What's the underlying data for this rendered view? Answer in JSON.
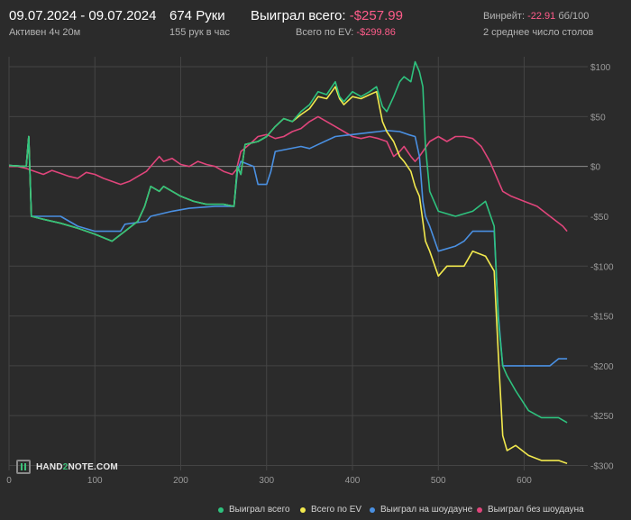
{
  "header": {
    "date_range": "09.07.2024 - 09.07.2024",
    "active_time": "Активен 4ч 20м",
    "hands": "674 Руки",
    "hands_per_hour": "155 рук в час",
    "won_total_label": "Выиграл всего:",
    "won_total_value": "-$257.99",
    "ev_total_label": "Всего по EV:",
    "ev_total_value": "-$299.86",
    "winrate_label": "Винрейт:",
    "winrate_value": "-22.91",
    "winrate_unit": "бб/100",
    "tables_text": "2 среднее число столов"
  },
  "logo": {
    "text_left": "HAND",
    "text_accent": "2",
    "text_right": "NOTE.COM"
  },
  "colors": {
    "background": "#2b2b2b",
    "grid": "#444444",
    "zero_line": "#8c8c8c",
    "axis_text": "#9a9a9a",
    "negative": "#ff5c8a",
    "won_total": "#2ec27e",
    "ev_total": "#f2e94e",
    "showdown": "#4a90e2",
    "non_showdown": "#e0457b"
  },
  "chart_data": {
    "type": "line",
    "title": "",
    "xlabel": "",
    "ylabel": "",
    "xlim": [
      0,
      674
    ],
    "ylim": [
      -305,
      110
    ],
    "x_ticks": [
      0,
      100,
      200,
      300,
      400,
      500,
      600
    ],
    "y_ticks": [
      100,
      50,
      0,
      -50,
      -100,
      -150,
      -200,
      -250,
      -300
    ],
    "y_tick_labels": [
      "$100",
      "$50",
      "$0",
      "-$50",
      "-$100",
      "-$150",
      "-$200",
      "-$250",
      "-$300"
    ],
    "grid": true,
    "legend_position": "bottom-right",
    "series": [
      {
        "name": "Выиграл всего",
        "color": "#2ec27e",
        "points": [
          [
            0,
            1
          ],
          [
            20,
            0
          ],
          [
            23,
            30
          ],
          [
            26,
            -50
          ],
          [
            40,
            -53
          ],
          [
            60,
            -57
          ],
          [
            80,
            -62
          ],
          [
            100,
            -68
          ],
          [
            120,
            -75
          ],
          [
            135,
            -65
          ],
          [
            150,
            -55
          ],
          [
            158,
            -40
          ],
          [
            165,
            -20
          ],
          [
            175,
            -25
          ],
          [
            180,
            -20
          ],
          [
            200,
            -30
          ],
          [
            215,
            -35
          ],
          [
            230,
            -38
          ],
          [
            250,
            -38
          ],
          [
            262,
            -40
          ],
          [
            266,
            0
          ],
          [
            270,
            -8
          ],
          [
            275,
            22
          ],
          [
            290,
            25
          ],
          [
            300,
            30
          ],
          [
            310,
            40
          ],
          [
            320,
            48
          ],
          [
            330,
            45
          ],
          [
            340,
            55
          ],
          [
            350,
            62
          ],
          [
            360,
            75
          ],
          [
            370,
            72
          ],
          [
            380,
            85
          ],
          [
            385,
            70
          ],
          [
            390,
            65
          ],
          [
            400,
            75
          ],
          [
            410,
            70
          ],
          [
            420,
            75
          ],
          [
            428,
            80
          ],
          [
            435,
            60
          ],
          [
            440,
            55
          ],
          [
            448,
            70
          ],
          [
            455,
            85
          ],
          [
            460,
            90
          ],
          [
            468,
            85
          ],
          [
            473,
            105
          ],
          [
            478,
            95
          ],
          [
            482,
            80
          ],
          [
            485,
            20
          ],
          [
            490,
            -25
          ],
          [
            500,
            -45
          ],
          [
            520,
            -50
          ],
          [
            540,
            -45
          ],
          [
            555,
            -35
          ],
          [
            565,
            -60
          ],
          [
            570,
            -155
          ],
          [
            575,
            -200
          ],
          [
            580,
            -210
          ],
          [
            590,
            -225
          ],
          [
            605,
            -245
          ],
          [
            620,
            -252
          ],
          [
            640,
            -252
          ],
          [
            650,
            -257
          ]
        ]
      },
      {
        "name": "Всего по EV",
        "color": "#f2e94e",
        "points": [
          [
            0,
            1
          ],
          [
            20,
            0
          ],
          [
            23,
            30
          ],
          [
            26,
            -50
          ],
          [
            40,
            -53
          ],
          [
            60,
            -57
          ],
          [
            80,
            -62
          ],
          [
            100,
            -68
          ],
          [
            120,
            -75
          ],
          [
            135,
            -65
          ],
          [
            150,
            -55
          ],
          [
            158,
            -40
          ],
          [
            165,
            -20
          ],
          [
            175,
            -25
          ],
          [
            180,
            -20
          ],
          [
            200,
            -30
          ],
          [
            215,
            -35
          ],
          [
            230,
            -38
          ],
          [
            250,
            -38
          ],
          [
            262,
            -40
          ],
          [
            266,
            0
          ],
          [
            270,
            -8
          ],
          [
            275,
            22
          ],
          [
            290,
            25
          ],
          [
            300,
            30
          ],
          [
            310,
            40
          ],
          [
            320,
            48
          ],
          [
            330,
            45
          ],
          [
            340,
            52
          ],
          [
            350,
            58
          ],
          [
            360,
            70
          ],
          [
            370,
            68
          ],
          [
            380,
            80
          ],
          [
            385,
            68
          ],
          [
            390,
            62
          ],
          [
            400,
            70
          ],
          [
            410,
            68
          ],
          [
            420,
            72
          ],
          [
            428,
            75
          ],
          [
            435,
            45
          ],
          [
            440,
            35
          ],
          [
            448,
            25
          ],
          [
            455,
            10
          ],
          [
            460,
            5
          ],
          [
            468,
            -5
          ],
          [
            473,
            -20
          ],
          [
            478,
            -30
          ],
          [
            482,
            -55
          ],
          [
            485,
            -75
          ],
          [
            490,
            -85
          ],
          [
            500,
            -110
          ],
          [
            510,
            -100
          ],
          [
            530,
            -100
          ],
          [
            540,
            -85
          ],
          [
            555,
            -90
          ],
          [
            565,
            -105
          ],
          [
            570,
            -190
          ],
          [
            575,
            -270
          ],
          [
            580,
            -285
          ],
          [
            590,
            -280
          ],
          [
            605,
            -290
          ],
          [
            620,
            -295
          ],
          [
            640,
            -295
          ],
          [
            650,
            -298
          ]
        ]
      },
      {
        "name": "Выиграл на шоудауне",
        "color": "#4a90e2",
        "points": [
          [
            0,
            1
          ],
          [
            20,
            0
          ],
          [
            23,
            30
          ],
          [
            26,
            -50
          ],
          [
            60,
            -50
          ],
          [
            80,
            -60
          ],
          [
            100,
            -65
          ],
          [
            130,
            -65
          ],
          [
            135,
            -58
          ],
          [
            160,
            -55
          ],
          [
            165,
            -50
          ],
          [
            190,
            -45
          ],
          [
            210,
            -42
          ],
          [
            240,
            -40
          ],
          [
            262,
            -40
          ],
          [
            266,
            -5
          ],
          [
            270,
            5
          ],
          [
            285,
            0
          ],
          [
            290,
            -18
          ],
          [
            300,
            -18
          ],
          [
            305,
            -5
          ],
          [
            310,
            15
          ],
          [
            340,
            20
          ],
          [
            350,
            18
          ],
          [
            360,
            22
          ],
          [
            380,
            30
          ],
          [
            400,
            32
          ],
          [
            410,
            33
          ],
          [
            420,
            34
          ],
          [
            430,
            35
          ],
          [
            440,
            36
          ],
          [
            455,
            35
          ],
          [
            465,
            32
          ],
          [
            473,
            30
          ],
          [
            478,
            10
          ],
          [
            482,
            -35
          ],
          [
            485,
            -50
          ],
          [
            490,
            -60
          ],
          [
            500,
            -85
          ],
          [
            520,
            -80
          ],
          [
            530,
            -75
          ],
          [
            540,
            -65
          ],
          [
            555,
            -65
          ],
          [
            565,
            -65
          ],
          [
            570,
            -150
          ],
          [
            575,
            -200
          ],
          [
            600,
            -200
          ],
          [
            630,
            -200
          ],
          [
            640,
            -193
          ],
          [
            650,
            -193
          ]
        ]
      },
      {
        "name": "Выиграл без шоудауна",
        "color": "#e0457b",
        "points": [
          [
            0,
            0
          ],
          [
            10,
            0
          ],
          [
            20,
            -2
          ],
          [
            30,
            -5
          ],
          [
            40,
            -8
          ],
          [
            50,
            -4
          ],
          [
            60,
            -7
          ],
          [
            70,
            -10
          ],
          [
            80,
            -12
          ],
          [
            90,
            -6
          ],
          [
            100,
            -8
          ],
          [
            110,
            -12
          ],
          [
            120,
            -15
          ],
          [
            130,
            -18
          ],
          [
            140,
            -15
          ],
          [
            150,
            -10
          ],
          [
            160,
            -5
          ],
          [
            170,
            5
          ],
          [
            175,
            10
          ],
          [
            180,
            5
          ],
          [
            190,
            8
          ],
          [
            200,
            2
          ],
          [
            210,
            0
          ],
          [
            220,
            5
          ],
          [
            230,
            2
          ],
          [
            240,
            0
          ],
          [
            250,
            -5
          ],
          [
            260,
            -8
          ],
          [
            265,
            -3
          ],
          [
            270,
            15
          ],
          [
            280,
            22
          ],
          [
            290,
            30
          ],
          [
            300,
            32
          ],
          [
            310,
            28
          ],
          [
            320,
            30
          ],
          [
            330,
            35
          ],
          [
            340,
            38
          ],
          [
            350,
            45
          ],
          [
            360,
            50
          ],
          [
            370,
            45
          ],
          [
            380,
            40
          ],
          [
            390,
            35
          ],
          [
            400,
            30
          ],
          [
            410,
            28
          ],
          [
            420,
            30
          ],
          [
            430,
            28
          ],
          [
            440,
            25
          ],
          [
            448,
            10
          ],
          [
            455,
            15
          ],
          [
            460,
            20
          ],
          [
            468,
            10
          ],
          [
            473,
            5
          ],
          [
            478,
            10
          ],
          [
            482,
            15
          ],
          [
            490,
            25
          ],
          [
            500,
            30
          ],
          [
            510,
            25
          ],
          [
            520,
            30
          ],
          [
            530,
            30
          ],
          [
            540,
            28
          ],
          [
            550,
            20
          ],
          [
            560,
            5
          ],
          [
            565,
            -5
          ],
          [
            575,
            -25
          ],
          [
            585,
            -30
          ],
          [
            600,
            -35
          ],
          [
            615,
            -40
          ],
          [
            630,
            -50
          ],
          [
            645,
            -60
          ],
          [
            650,
            -65
          ]
        ]
      }
    ]
  }
}
